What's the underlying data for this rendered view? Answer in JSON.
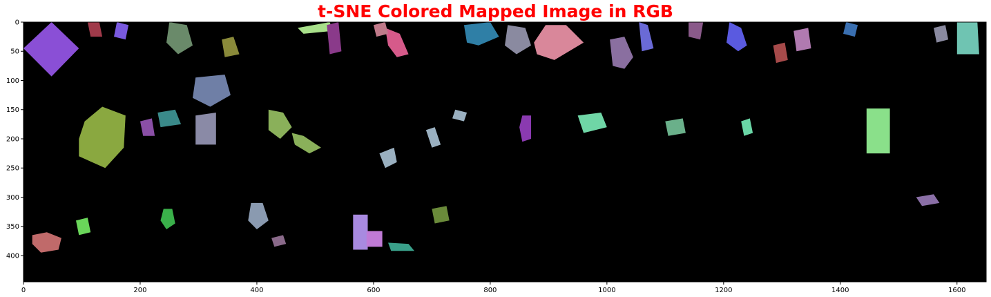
{
  "colors": {
    "title": "#ff0000",
    "background": "#000000",
    "axis": "#000000"
  },
  "chart_data": {
    "type": "heatmap",
    "title": "t-SNE Colored Mapped Image in RGB",
    "xlabel": "",
    "ylabel": "",
    "xlim": [
      0,
      1650
    ],
    "ylim": [
      445,
      0
    ],
    "x_ticks": [
      0,
      200,
      400,
      600,
      800,
      1000,
      1200,
      1400,
      1600
    ],
    "y_ticks": [
      0,
      50,
      100,
      150,
      200,
      250,
      300,
      350,
      400
    ],
    "grid": false,
    "regions": [
      {
        "shape": "poly",
        "points": [
          [
            0,
            45
          ],
          [
            48,
            0
          ],
          [
            95,
            45
          ],
          [
            48,
            93
          ]
        ],
        "color": "#8a4fd6"
      },
      {
        "shape": "poly",
        "points": [
          [
            105,
            170
          ],
          [
            135,
            145
          ],
          [
            175,
            160
          ],
          [
            172,
            215
          ],
          [
            140,
            250
          ],
          [
            95,
            230
          ],
          [
            95,
            200
          ]
        ],
        "color": "#8aa840"
      },
      {
        "shape": "poly",
        "points": [
          [
            755,
            5
          ],
          [
            800,
            0
          ],
          [
            815,
            25
          ],
          [
            780,
            40
          ],
          [
            760,
            35
          ]
        ],
        "color": "#2f7fa6"
      },
      {
        "shape": "poly",
        "points": [
          [
            895,
            5
          ],
          [
            930,
            5
          ],
          [
            960,
            35
          ],
          [
            910,
            65
          ],
          [
            880,
            55
          ],
          [
            875,
            35
          ]
        ],
        "color": "#d9879a"
      },
      {
        "shape": "poly",
        "points": [
          [
            1210,
            0
          ],
          [
            1230,
            10
          ],
          [
            1240,
            40
          ],
          [
            1225,
            50
          ],
          [
            1205,
            35
          ]
        ],
        "color": "#5a5ae0"
      },
      {
        "shape": "poly",
        "points": [
          [
            1600,
            0
          ],
          [
            1635,
            0
          ],
          [
            1638,
            55
          ],
          [
            1600,
            55
          ]
        ],
        "color": "#6fc4b2"
      },
      {
        "shape": "poly",
        "points": [
          [
            565,
            330
          ],
          [
            590,
            330
          ],
          [
            590,
            390
          ],
          [
            565,
            390
          ]
        ],
        "color": "#a88ae0"
      },
      {
        "shape": "poly",
        "points": [
          [
            588,
            358
          ],
          [
            615,
            358
          ],
          [
            615,
            385
          ],
          [
            588,
            385
          ]
        ],
        "color": "#c07ad6"
      },
      {
        "shape": "poly",
        "points": [
          [
            1445,
            148
          ],
          [
            1485,
            148
          ],
          [
            1485,
            225
          ],
          [
            1445,
            225
          ]
        ],
        "color": "#8ae08a"
      },
      {
        "shape": "poly",
        "points": [
          [
            15,
            365
          ],
          [
            40,
            360
          ],
          [
            65,
            370
          ],
          [
            60,
            390
          ],
          [
            30,
            395
          ],
          [
            15,
            380
          ]
        ],
        "color": "#c06a6a"
      },
      {
        "shape": "poly",
        "points": [
          [
            1005,
            30
          ],
          [
            1030,
            25
          ],
          [
            1045,
            60
          ],
          [
            1030,
            80
          ],
          [
            1010,
            75
          ]
        ],
        "color": "#8a6fa0"
      },
      {
        "shape": "poly",
        "points": [
          [
            830,
            5
          ],
          [
            860,
            10
          ],
          [
            870,
            40
          ],
          [
            845,
            55
          ],
          [
            825,
            40
          ]
        ],
        "color": "#8a8aa0"
      },
      {
        "shape": "poly",
        "points": [
          [
            250,
            0
          ],
          [
            280,
            5
          ],
          [
            290,
            40
          ],
          [
            265,
            55
          ],
          [
            245,
            35
          ]
        ],
        "color": "#6a8a6a"
      },
      {
        "shape": "poly",
        "points": [
          [
            295,
            95
          ],
          [
            345,
            90
          ],
          [
            355,
            125
          ],
          [
            320,
            145
          ],
          [
            290,
            130
          ]
        ],
        "color": "#6f7fa6"
      },
      {
        "shape": "poly",
        "points": [
          [
            295,
            160
          ],
          [
            330,
            155
          ],
          [
            330,
            210
          ],
          [
            295,
            210
          ]
        ],
        "color": "#8a8aa6"
      },
      {
        "shape": "poly",
        "points": [
          [
            200,
            170
          ],
          [
            220,
            165
          ],
          [
            225,
            195
          ],
          [
            205,
            195
          ]
        ],
        "color": "#8a4fa6"
      },
      {
        "shape": "poly",
        "points": [
          [
            110,
            0
          ],
          [
            130,
            0
          ],
          [
            135,
            25
          ],
          [
            115,
            25
          ]
        ],
        "color": "#a03a4a"
      },
      {
        "shape": "poly",
        "points": [
          [
            160,
            0
          ],
          [
            180,
            5
          ],
          [
            175,
            30
          ],
          [
            155,
            25
          ]
        ],
        "color": "#7a5ae0"
      },
      {
        "shape": "poly",
        "points": [
          [
            470,
            10
          ],
          [
            525,
            0
          ],
          [
            530,
            15
          ],
          [
            480,
            20
          ]
        ],
        "color": "#a8e08a"
      },
      {
        "shape": "poly",
        "points": [
          [
            420,
            150
          ],
          [
            445,
            155
          ],
          [
            460,
            180
          ],
          [
            440,
            200
          ],
          [
            420,
            185
          ]
        ],
        "color": "#8ab05a"
      },
      {
        "shape": "poly",
        "points": [
          [
            460,
            190
          ],
          [
            480,
            195
          ],
          [
            510,
            215
          ],
          [
            490,
            225
          ],
          [
            465,
            210
          ]
        ],
        "color": "#8ab05a"
      },
      {
        "shape": "poly",
        "points": [
          [
            390,
            310
          ],
          [
            410,
            310
          ],
          [
            420,
            340
          ],
          [
            400,
            355
          ],
          [
            385,
            340
          ]
        ],
        "color": "#8a9ab0"
      },
      {
        "shape": "poly",
        "points": [
          [
            625,
            378
          ],
          [
            660,
            380
          ],
          [
            670,
            392
          ],
          [
            630,
            392
          ]
        ],
        "color": "#3aa08a"
      },
      {
        "shape": "poly",
        "points": [
          [
            240,
            320
          ],
          [
            255,
            320
          ],
          [
            260,
            345
          ],
          [
            245,
            355
          ],
          [
            235,
            340
          ]
        ],
        "color": "#3ab04a"
      },
      {
        "shape": "poly",
        "points": [
          [
            855,
            160
          ],
          [
            870,
            160
          ],
          [
            870,
            200
          ],
          [
            855,
            205
          ],
          [
            850,
            180
          ]
        ],
        "color": "#8a3ab0"
      },
      {
        "shape": "poly",
        "points": [
          [
            1530,
            300
          ],
          [
            1560,
            295
          ],
          [
            1570,
            310
          ],
          [
            1540,
            315
          ]
        ],
        "color": "#8a6fa6"
      },
      {
        "shape": "poly",
        "points": [
          [
            1320,
            15
          ],
          [
            1345,
            10
          ],
          [
            1350,
            45
          ],
          [
            1325,
            50
          ]
        ],
        "color": "#b07ab0"
      },
      {
        "shape": "poly",
        "points": [
          [
            620,
            10
          ],
          [
            645,
            20
          ],
          [
            660,
            55
          ],
          [
            640,
            60
          ],
          [
            625,
            40
          ]
        ],
        "color": "#d65a8a"
      },
      {
        "shape": "poly",
        "points": [
          [
            950,
            160
          ],
          [
            990,
            155
          ],
          [
            1000,
            180
          ],
          [
            960,
            190
          ]
        ],
        "color": "#6fd6a6"
      },
      {
        "shape": "poly",
        "points": [
          [
            90,
            340
          ],
          [
            110,
            335
          ],
          [
            115,
            360
          ],
          [
            95,
            365
          ]
        ],
        "color": "#6ad65a"
      },
      {
        "shape": "poly",
        "points": [
          [
            610,
            225
          ],
          [
            635,
            215
          ],
          [
            640,
            240
          ],
          [
            620,
            250
          ]
        ],
        "color": "#9ab0c0"
      },
      {
        "shape": "poly",
        "points": [
          [
            690,
            185
          ],
          [
            705,
            180
          ],
          [
            715,
            210
          ],
          [
            700,
            215
          ]
        ],
        "color": "#9ab0c0"
      },
      {
        "shape": "poly",
        "points": [
          [
            340,
            30
          ],
          [
            360,
            25
          ],
          [
            370,
            55
          ],
          [
            345,
            60
          ]
        ],
        "color": "#8a8a3a"
      },
      {
        "shape": "poly",
        "points": [
          [
            1055,
            0
          ],
          [
            1070,
            5
          ],
          [
            1080,
            45
          ],
          [
            1060,
            50
          ]
        ],
        "color": "#6a6ad6"
      },
      {
        "shape": "poly",
        "points": [
          [
            1410,
            0
          ],
          [
            1430,
            5
          ],
          [
            1425,
            25
          ],
          [
            1405,
            20
          ]
        ],
        "color": "#3a6fb0"
      },
      {
        "shape": "poly",
        "points": [
          [
            1140,
            0
          ],
          [
            1165,
            0
          ],
          [
            1160,
            30
          ],
          [
            1140,
            25
          ]
        ],
        "color": "#8a5a8a"
      },
      {
        "shape": "poly",
        "points": [
          [
            1285,
            40
          ],
          [
            1305,
            35
          ],
          [
            1310,
            65
          ],
          [
            1290,
            70
          ]
        ],
        "color": "#a64a4a"
      },
      {
        "shape": "poly",
        "points": [
          [
            600,
            5
          ],
          [
            620,
            0
          ],
          [
            625,
            20
          ],
          [
            605,
            25
          ]
        ],
        "color": "#c07a8a"
      },
      {
        "shape": "poly",
        "points": [
          [
            520,
            5
          ],
          [
            540,
            0
          ],
          [
            545,
            50
          ],
          [
            525,
            55
          ]
        ],
        "color": "#8a3a8a"
      },
      {
        "shape": "poly",
        "points": [
          [
            700,
            320
          ],
          [
            725,
            315
          ],
          [
            730,
            340
          ],
          [
            705,
            345
          ]
        ],
        "color": "#6a8a3a"
      },
      {
        "shape": "poly",
        "points": [
          [
            425,
            370
          ],
          [
            445,
            365
          ],
          [
            450,
            380
          ],
          [
            430,
            385
          ]
        ],
        "color": "#8a6a8a"
      },
      {
        "shape": "poly",
        "points": [
          [
            1100,
            170
          ],
          [
            1130,
            165
          ],
          [
            1135,
            190
          ],
          [
            1105,
            195
          ]
        ],
        "color": "#6ab08a"
      },
      {
        "shape": "poly",
        "points": [
          [
            1560,
            10
          ],
          [
            1580,
            5
          ],
          [
            1585,
            30
          ],
          [
            1565,
            35
          ]
        ],
        "color": "#8a8aa0"
      },
      {
        "shape": "poly",
        "points": [
          [
            740,
            150
          ],
          [
            760,
            155
          ],
          [
            755,
            170
          ],
          [
            735,
            165
          ]
        ],
        "color": "#9ab0c0"
      },
      {
        "shape": "poly",
        "points": [
          [
            1230,
            170
          ],
          [
            1245,
            165
          ],
          [
            1250,
            190
          ],
          [
            1235,
            195
          ]
        ],
        "color": "#6ad6a6"
      },
      {
        "shape": "poly",
        "points": [
          [
            230,
            155
          ],
          [
            260,
            150
          ],
          [
            270,
            175
          ],
          [
            235,
            180
          ]
        ],
        "color": "#3a8a8a"
      }
    ]
  }
}
